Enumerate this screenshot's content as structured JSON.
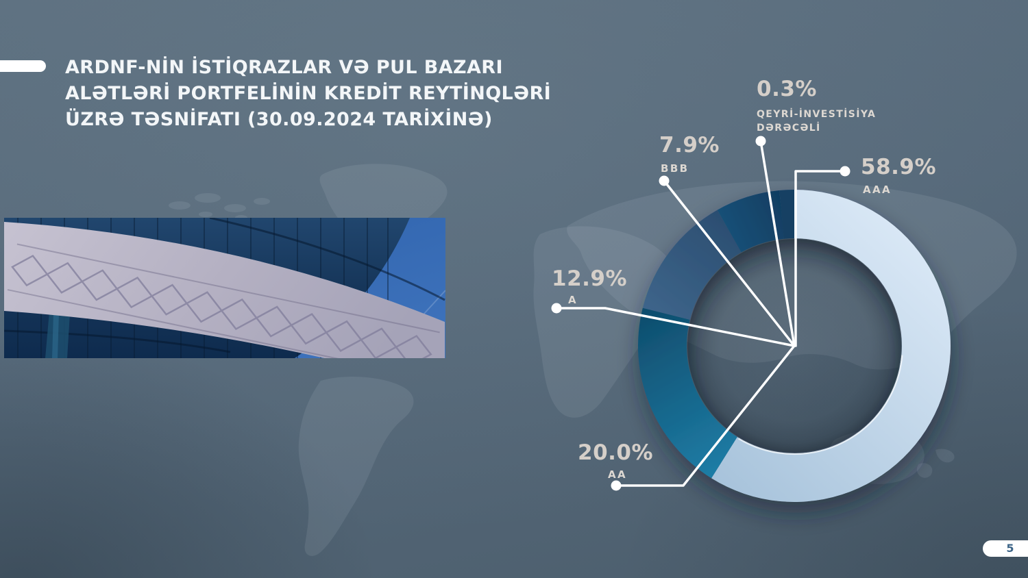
{
  "slide": {
    "title_lines": [
      "ARDNF-NİN İSTİQRAZLAR VƏ PUL BAZARI",
      "ALƏTLƏRİ PORTFELİNİN KREDİT REYTİNQLƏRİ",
      "ÜZRƏ TƏSNİFATI (30.09.2024 TARİXİNƏ)"
    ],
    "page_number": "5"
  },
  "chart_data": {
    "type": "donut",
    "title": "ARDNF-nin istiqrazlar və pul bazarı alətləri portfelinin kredit reytinqləri üzrə təsnifatı (30.09.2024 tarixinə)",
    "unit": "%",
    "grid": false,
    "legend_position": "callouts",
    "segments": [
      {
        "label": "AAA",
        "value": 58.9,
        "display": "58.9%",
        "color_from": "#dfecf9",
        "color_to": "#a2bfd8"
      },
      {
        "label": "AA",
        "value": 20.0,
        "display": "20.0%",
        "color_from": "#2187b2",
        "color_to": "#0d4766"
      },
      {
        "label": "A",
        "value": 12.9,
        "display": "12.9%",
        "color_from": "#40688e",
        "color_to": "#2a4c6f"
      },
      {
        "label": "BBB",
        "value": 7.9,
        "display": "7.9%",
        "color_from": "#1f5e87",
        "color_to": "#0f3a5e"
      },
      {
        "label": "QEYRİ-İNVESTİSİYA DƏRƏCƏLİ",
        "label_lines": [
          "QEYRİ-İNVESTİSİYA",
          "DƏRƏCƏLİ"
        ],
        "value": 0.3,
        "display": "0.3%",
        "color_from": "#123f63",
        "color_to": "#123f63"
      }
    ]
  },
  "colors": {
    "background": "#56697a",
    "accent_bar": "#ffffff",
    "title_text": "#f3f6f8",
    "percent_text": "#d5cfc9",
    "category_text": "#ddd8d2",
    "leader_line": "#ffffff",
    "page_pill_bg": "#ffffff",
    "page_number_text": "#3c6487"
  }
}
